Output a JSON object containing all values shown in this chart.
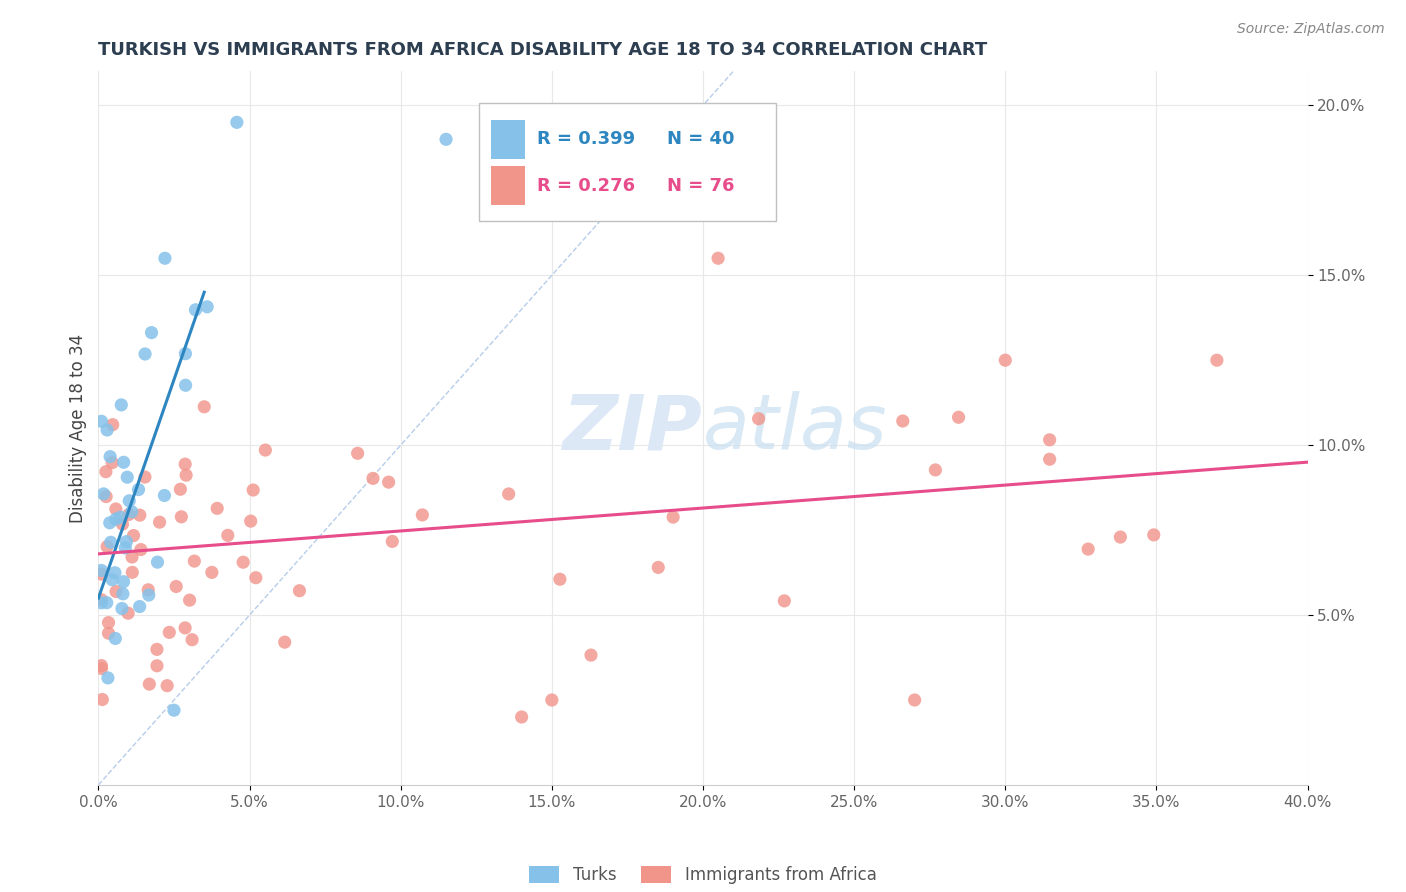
{
  "title": "TURKISH VS IMMIGRANTS FROM AFRICA DISABILITY AGE 18 TO 34 CORRELATION CHART",
  "source": "Source: ZipAtlas.com",
  "ylabel": "Disability Age 18 to 34",
  "x_min": 0.0,
  "x_max": 0.4,
  "y_min": 0.0,
  "y_max": 0.21,
  "legend_r1": "R = 0.399",
  "legend_n1": "N = 40",
  "legend_r2": "R = 0.276",
  "legend_n2": "N = 76",
  "turks_color": "#85c1e9",
  "africa_color": "#f1948a",
  "trendline1_color": "#2e86c1",
  "trendline2_color": "#e74c8b",
  "diagonal_color": "#aec7e8",
  "watermark_color": "#dce8f5",
  "background_color": "#ffffff",
  "grid_color": "#e8e8e8",
  "title_color": "#2c3e50",
  "tick_color": "#666666",
  "source_color": "#888888",
  "legend_text_blue": "#2e86c1",
  "legend_text_pink": "#e74c8b"
}
